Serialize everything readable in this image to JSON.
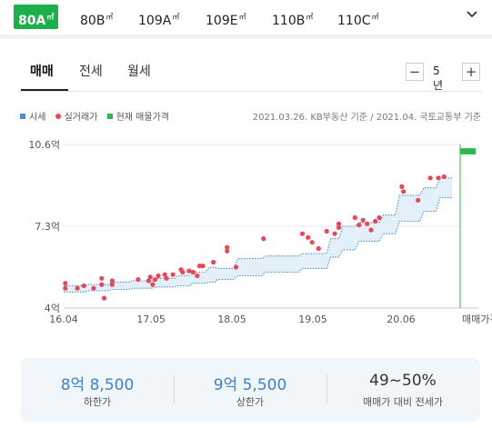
{
  "size_tabs": [
    {
      "label": "80A",
      "unit": "㎡",
      "active": true
    },
    {
      "label": "80B",
      "unit": "㎡",
      "active": false
    },
    {
      "label": "109A",
      "unit": "㎡",
      "active": false
    },
    {
      "label": "109E",
      "unit": "㎡",
      "active": false
    },
    {
      "label": "110B",
      "unit": "㎡",
      "active": false
    },
    {
      "label": "110C",
      "unit": "㎡",
      "active": false
    }
  ],
  "trade_tabs": [
    {
      "label": "매매",
      "active": true
    },
    {
      "label": "전세",
      "active": false
    },
    {
      "label": "월세",
      "active": false
    }
  ],
  "period": {
    "minus": "−",
    "value": "5년",
    "plus": "+"
  },
  "legend": {
    "market": "시세",
    "actual": "실거래가",
    "current": "현재 매물가격"
  },
  "source_note": "2021.03.26. KB부동산 기준 / 2021.04. 국토교통부 기준",
  "colors": {
    "active_tab": "#1bb04a",
    "market": "#4a90d9",
    "market_fill": "#e3f0fa",
    "actual": "#ee4455",
    "current": "#2db84f",
    "summary_value": "#3c82d0"
  },
  "chart_data": {
    "type": "line",
    "title": "",
    "xlabel": "",
    "ylabel": "",
    "x_tick_labels": [
      "16.04",
      "17.05",
      "18.05",
      "19.05",
      "20.06",
      "매매가격"
    ],
    "x_tick_years": [
      2016.25,
      2017.33,
      2018.33,
      2019.33,
      2020.42
    ],
    "xlim": [
      2016.25,
      2021.15
    ],
    "current_listing_x_label": "매매가격",
    "y_tick_labels": [
      "4억",
      "7.3억",
      "10.6억"
    ],
    "y_tick_values": [
      4.0,
      7.3,
      10.6
    ],
    "ylim": [
      4.0,
      10.6
    ],
    "grid": true,
    "legend_position": "top-left",
    "series": [
      {
        "name": "시세",
        "type": "band",
        "x": [
          2016.25,
          2016.5,
          2016.55,
          2016.8,
          2016.85,
          2017.05,
          2017.1,
          2017.35,
          2017.4,
          2017.62,
          2017.65,
          2017.8,
          2017.85,
          2018.0,
          2018.05,
          2018.12,
          2018.15,
          2018.35,
          2018.4,
          2018.7,
          2018.75,
          2019.15,
          2019.2,
          2019.5,
          2019.55,
          2019.65,
          2019.7,
          2019.85,
          2019.9,
          2020.15,
          2020.2,
          2020.35,
          2020.4,
          2020.65,
          2020.7,
          2020.85,
          2020.9,
          2021.05
        ],
        "upper": [
          4.9,
          4.9,
          4.95,
          4.95,
          5.05,
          5.05,
          5.1,
          5.1,
          5.2,
          5.2,
          5.3,
          5.3,
          5.45,
          5.45,
          5.65,
          5.65,
          5.6,
          5.6,
          6.0,
          6.0,
          6.1,
          6.1,
          6.2,
          6.2,
          6.8,
          6.8,
          7.3,
          7.3,
          7.45,
          7.45,
          7.75,
          7.75,
          8.55,
          8.55,
          8.85,
          8.85,
          9.25,
          9.25
        ],
        "lower": [
          4.65,
          4.65,
          4.7,
          4.7,
          4.75,
          4.75,
          4.8,
          4.8,
          4.85,
          4.85,
          4.9,
          4.9,
          5.0,
          5.0,
          5.05,
          5.05,
          5.15,
          5.15,
          5.3,
          5.3,
          5.45,
          5.45,
          5.6,
          5.6,
          6.05,
          6.05,
          6.35,
          6.35,
          6.7,
          6.7,
          7.0,
          7.0,
          7.5,
          7.5,
          7.9,
          7.9,
          8.45,
          8.45
        ]
      },
      {
        "name": "실거래가",
        "type": "scatter",
        "points": [
          [
            2016.27,
            5.0
          ],
          [
            2016.27,
            4.8
          ],
          [
            2016.42,
            4.8
          ],
          [
            2016.5,
            4.9
          ],
          [
            2016.62,
            4.8
          ],
          [
            2016.72,
            5.2
          ],
          [
            2016.72,
            4.95
          ],
          [
            2016.75,
            4.4
          ],
          [
            2016.85,
            4.95
          ],
          [
            2016.85,
            5.1
          ],
          [
            2017.17,
            5.15
          ],
          [
            2017.3,
            5.1
          ],
          [
            2017.32,
            5.25
          ],
          [
            2017.35,
            4.95
          ],
          [
            2017.38,
            5.15
          ],
          [
            2017.42,
            5.3
          ],
          [
            2017.5,
            5.35
          ],
          [
            2017.52,
            5.2
          ],
          [
            2017.6,
            5.35
          ],
          [
            2017.7,
            5.55
          ],
          [
            2017.72,
            5.45
          ],
          [
            2017.8,
            5.5
          ],
          [
            2017.85,
            5.45
          ],
          [
            2017.9,
            5.3
          ],
          [
            2017.93,
            5.7
          ],
          [
            2017.97,
            5.7
          ],
          [
            2018.1,
            5.85
          ],
          [
            2018.27,
            6.3
          ],
          [
            2018.27,
            6.45
          ],
          [
            2018.38,
            5.65
          ],
          [
            2018.72,
            6.8
          ],
          [
            2019.2,
            7.0
          ],
          [
            2019.27,
            6.85
          ],
          [
            2019.32,
            6.65
          ],
          [
            2019.4,
            6.4
          ],
          [
            2019.5,
            7.1
          ],
          [
            2019.6,
            7.0
          ],
          [
            2019.65,
            7.25
          ],
          [
            2019.65,
            7.4
          ],
          [
            2019.85,
            7.65
          ],
          [
            2019.9,
            7.35
          ],
          [
            2019.95,
            7.55
          ],
          [
            2020.0,
            7.4
          ],
          [
            2020.05,
            7.15
          ],
          [
            2020.1,
            7.5
          ],
          [
            2020.15,
            7.65
          ],
          [
            2020.43,
            8.9
          ],
          [
            2020.45,
            8.7
          ],
          [
            2020.63,
            8.35
          ],
          [
            2020.78,
            9.25
          ],
          [
            2020.88,
            9.25
          ],
          [
            2020.95,
            9.3
          ]
        ]
      },
      {
        "name": "현재 매물가격",
        "type": "range_marker",
        "min": 10.2,
        "max": 10.45
      }
    ]
  },
  "summary": [
    {
      "value": "8억 8,500",
      "label": "하한가",
      "highlight": true
    },
    {
      "value": "9억 5,500",
      "label": "상한가",
      "highlight": true
    },
    {
      "value": "49~50%",
      "label": "매매가 대비 전세가",
      "highlight": false
    }
  ]
}
